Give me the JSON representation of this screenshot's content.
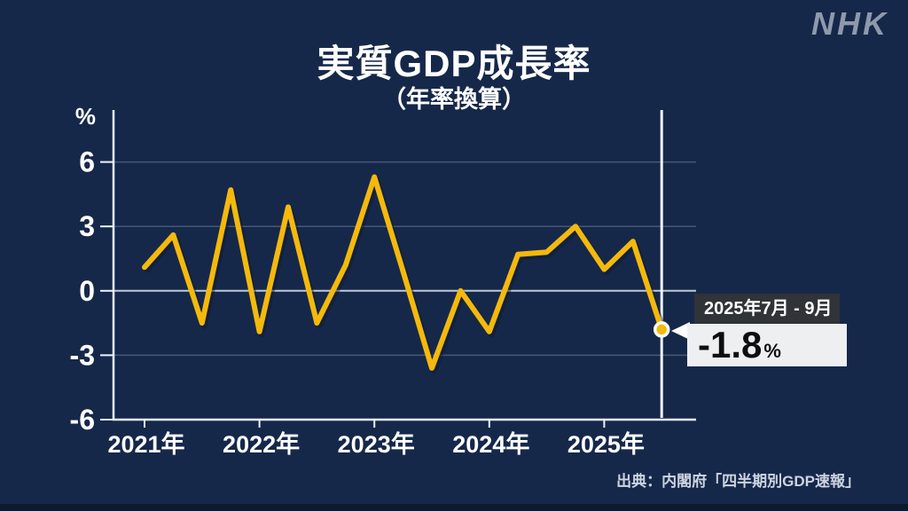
{
  "branding": {
    "logo": "NHK"
  },
  "title": "実質GDP成長率",
  "subtitle": "（年率換算）",
  "source": "出典：内閣府「四半期別GDP速報」",
  "callout": {
    "period": "2025年7月 - 9月",
    "value": "-1.8",
    "unit": "%"
  },
  "colors": {
    "background": "#16284a",
    "line": "#f4b90c",
    "dot": "#f4b90c",
    "marker_line": "#f4f7fa",
    "callout_header_bg": "#303338",
    "callout_value_bg": "#edeff1"
  },
  "chart_data": {
    "type": "line",
    "title": "実質GDP成長率（年率換算）",
    "unit_label": "%",
    "x": [
      "2021Q1",
      "2021Q2",
      "2021Q3",
      "2021Q4",
      "2022Q1",
      "2022Q2",
      "2022Q3",
      "2022Q4",
      "2023Q1",
      "2023Q2",
      "2023Q3",
      "2023Q4",
      "2024Q1",
      "2024Q2",
      "2024Q3",
      "2024Q4",
      "2025Q1",
      "2025Q2",
      "2025Q3"
    ],
    "values": [
      1.1,
      2.6,
      -1.5,
      4.7,
      -1.9,
      3.9,
      -1.5,
      1.2,
      5.3,
      0.9,
      -3.6,
      0.0,
      -1.9,
      1.7,
      1.8,
      3.0,
      1.0,
      2.3,
      -1.8
    ],
    "x_tick_labels": [
      "2021年",
      "2022年",
      "2023年",
      "2024年",
      "2025年"
    ],
    "y_ticks": [
      6,
      3,
      0,
      -3,
      -6
    ],
    "y_tick_labels": [
      "6",
      "3",
      "0",
      "-3",
      "-6"
    ],
    "ylim": [
      -6,
      6
    ],
    "grid": true,
    "legend": "none",
    "highlight": {
      "index": 18,
      "label": "2025年7月 - 9月",
      "value": -1.8
    }
  }
}
